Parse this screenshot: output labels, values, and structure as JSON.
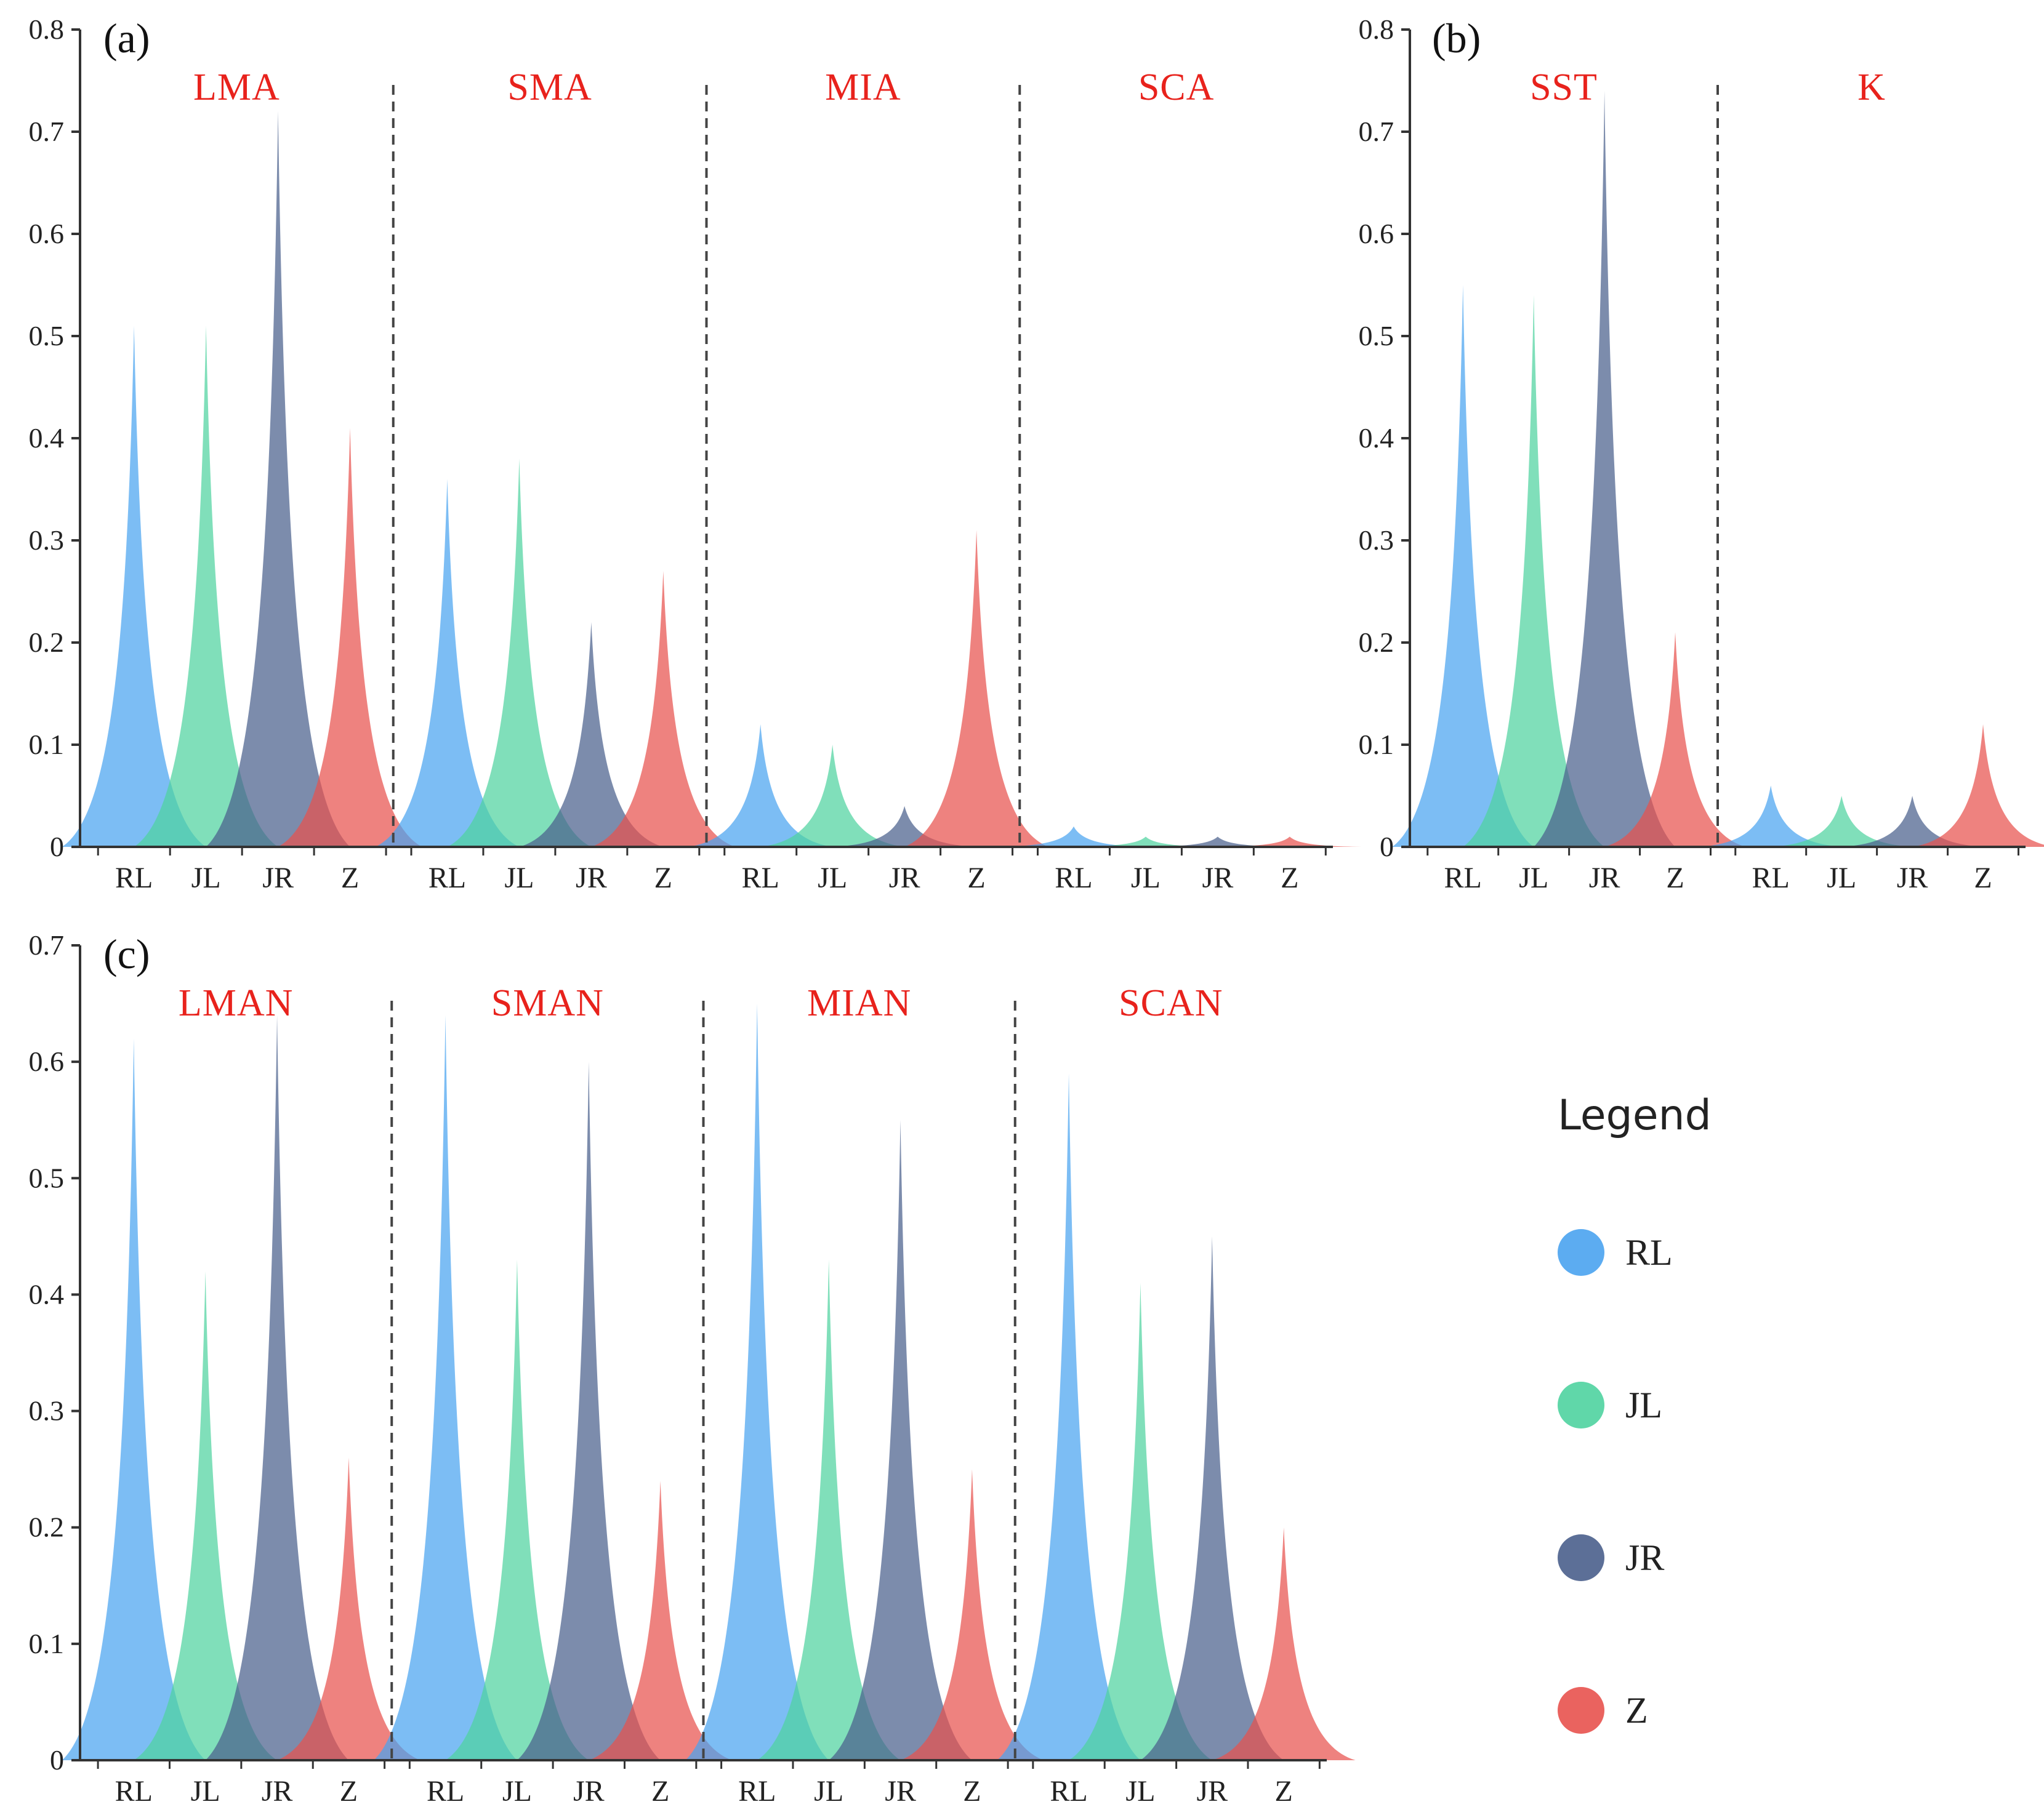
{
  "series_colors": {
    "RL": "#4aa3f0",
    "JL": "#4fd3a0",
    "JR": "#4a5f8c",
    "Z": "#e8524e"
  },
  "legend": {
    "title": "Legend",
    "items": [
      {
        "key": "RL",
        "label": "RL",
        "color": "#4aa3f0"
      },
      {
        "key": "JL",
        "label": "JL",
        "color": "#4fd3a0"
      },
      {
        "key": "JR",
        "label": "JR",
        "color": "#4a5f8c"
      },
      {
        "key": "Z",
        "label": "Z",
        "color": "#e8524e"
      }
    ]
  },
  "chart_data": [
    {
      "panel": "(a)",
      "type": "area",
      "categories": [
        "RL",
        "JL",
        "JR",
        "Z"
      ],
      "ylim": [
        0,
        0.8
      ],
      "yticks": [
        "0",
        "0.1",
        "0.2",
        "0.3",
        "0.4",
        "0.5",
        "0.6",
        "0.7",
        "0.8"
      ],
      "groups": [
        {
          "name": "LMA",
          "values": [
            0.51,
            0.51,
            0.72,
            0.41
          ]
        },
        {
          "name": "SMA",
          "values": [
            0.36,
            0.38,
            0.22,
            0.27
          ]
        },
        {
          "name": "MIA",
          "values": [
            0.12,
            0.1,
            0.04,
            0.31
          ]
        },
        {
          "name": "SCA",
          "values": [
            0.02,
            0.01,
            0.01,
            0.01
          ]
        }
      ]
    },
    {
      "panel": "(b)",
      "type": "area",
      "categories": [
        "RL",
        "JL",
        "JR",
        "Z"
      ],
      "ylim": [
        0,
        0.8
      ],
      "yticks": [
        "0",
        "0.1",
        "0.2",
        "0.3",
        "0.4",
        "0.5",
        "0.6",
        "0.7",
        "0.8"
      ],
      "groups": [
        {
          "name": "SST",
          "values": [
            0.55,
            0.54,
            0.74,
            0.21
          ]
        },
        {
          "name": "K",
          "values": [
            0.06,
            0.05,
            0.05,
            0.12
          ]
        }
      ]
    },
    {
      "panel": "(c)",
      "type": "area",
      "categories": [
        "RL",
        "JL",
        "JR",
        "Z"
      ],
      "ylim": [
        0,
        0.7
      ],
      "yticks": [
        "0",
        "0.1",
        "0.2",
        "0.3",
        "0.4",
        "0.5",
        "0.6",
        "0.7"
      ],
      "groups": [
        {
          "name": "LMAN",
          "values": [
            0.62,
            0.42,
            0.64,
            0.26
          ]
        },
        {
          "name": "SMAN",
          "values": [
            0.64,
            0.43,
            0.6,
            0.24
          ]
        },
        {
          "name": "MIAN",
          "values": [
            0.65,
            0.43,
            0.55,
            0.25
          ]
        },
        {
          "name": "SCAN",
          "values": [
            0.59,
            0.41,
            0.45,
            0.2
          ]
        }
      ]
    }
  ]
}
